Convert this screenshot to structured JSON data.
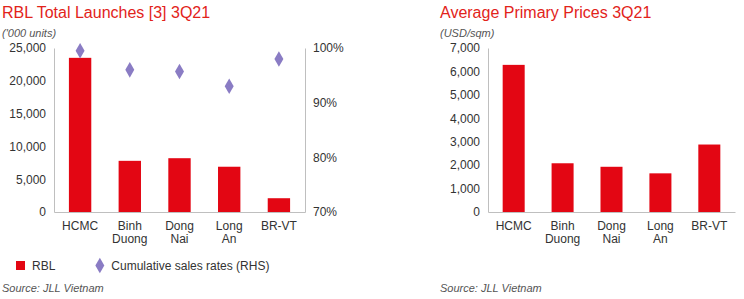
{
  "chart_data": [
    {
      "type": "bar",
      "title": "RBL Total Launches [3] 3Q21",
      "subtitle": "('000 units)",
      "source": "Source: JLL Vietnam",
      "categories": [
        "HCMC",
        "Binh Duong",
        "Dong Nai",
        "Long An",
        "BR-VT"
      ],
      "series": [
        {
          "name": "RBL",
          "type": "bar",
          "color": "#e30613",
          "values": [
            23500,
            7800,
            8200,
            6900,
            2100
          ]
        },
        {
          "name": "Cumulative sales rates (RHS)",
          "type": "scatter",
          "marker": "diamond",
          "color": "#8a7cc4",
          "axis": "y2",
          "values": [
            99.5,
            96,
            95.7,
            93,
            98
          ]
        }
      ],
      "ylim": [
        0,
        25000
      ],
      "yticks": [
        0,
        {
          "value": 5000,
          "label": "5,000"
        },
        {
          "value": 10000,
          "label": "10,000"
        },
        {
          "value": 15000,
          "label": "15,000"
        },
        {
          "value": 20000,
          "label": "20,000"
        },
        {
          "value": 25000,
          "label": "25,000"
        }
      ],
      "y2lim": [
        70,
        100
      ],
      "y2ticks": [
        {
          "value": 70,
          "label": "70%"
        },
        {
          "value": 80,
          "label": "80%"
        },
        {
          "value": 90,
          "label": "90%"
        },
        {
          "value": 100,
          "label": "100%"
        }
      ],
      "grid": false,
      "legend": "bottom"
    },
    {
      "type": "bar",
      "title": "Average Primary Prices 3Q21",
      "subtitle": "(USD/sqm)",
      "source": "Source: JLL Vietnam",
      "categories": [
        "HCMC",
        "Binh Duong",
        "Dong Nai",
        "Long An",
        "BR-VT"
      ],
      "values": [
        6280,
        2080,
        1930,
        1650,
        2880
      ],
      "color": "#e30613",
      "ylim": [
        0,
        7000
      ],
      "yticks": [
        0,
        {
          "value": 1000,
          "label": "1,000"
        },
        {
          "value": 2000,
          "label": "2,000"
        },
        {
          "value": 3000,
          "label": "3,000"
        },
        {
          "value": 4000,
          "label": "4,000"
        },
        {
          "value": 5000,
          "label": "5,000"
        },
        {
          "value": 6000,
          "label": "6,000"
        },
        {
          "value": 7000,
          "label": "7,000"
        }
      ],
      "grid": false
    }
  ]
}
